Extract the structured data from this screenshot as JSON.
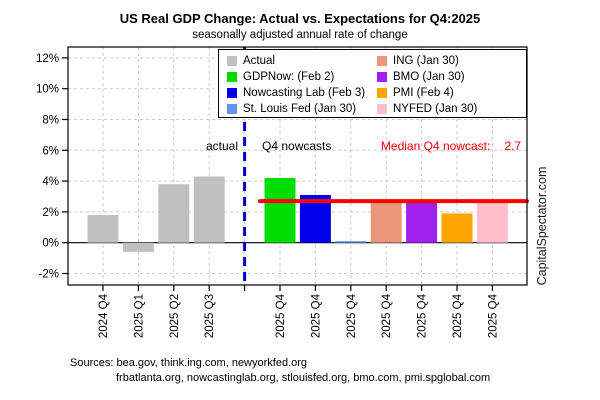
{
  "title": "US Real GDP Change: Actual vs. Expectations for Q4:2025",
  "subtitle": "seasonally adjusted annual rate of change",
  "annotations": {
    "actual_label": "actual",
    "nowcasts_label": "Q4 nowcasts",
    "median_label": "Median Q4 nowcast:",
    "median_value": "2.7"
  },
  "watermark": "CapitalSpectator.com",
  "sources_line1": "Sources: bea.gov, think.ing.com, newyorkfed.org",
  "sources_line2": "frbatlanta.org, nowcastinglab.org, stlouisfed.org, bmo.com, pmi.spglobal.com",
  "legend": {
    "items": [
      {
        "label": "Actual",
        "color": "#C0C0C0"
      },
      {
        "label": "GDPNow: (Feb 2)",
        "color": "#00DD00"
      },
      {
        "label": "Nowcasting Lab (Feb 3)",
        "color": "#0000EE"
      },
      {
        "label": "St. Louis Fed (Jan 30)",
        "color": "#6495ED"
      },
      {
        "label": "ING (Jan 30)",
        "color": "#E9967A"
      },
      {
        "label": "BMO (Jan 30)",
        "color": "#A020F0"
      },
      {
        "label": "PMI (Feb 4)",
        "color": "#FFA500"
      },
      {
        "label": "NYFED (Jan 30)",
        "color": "#FFC0CB"
      }
    ]
  },
  "chart_data": {
    "type": "bar",
    "title": "US Real GDP Change: Actual vs. Expectations for Q4:2025",
    "subtitle": "seasonally adjusted annual rate of change",
    "xlabel": "",
    "ylabel": "",
    "ylim": [
      -2.7,
      12.7
    ],
    "grid": true,
    "legend_position": "top-inside",
    "y_ticks": [
      {
        "value": -2,
        "label": "-2%"
      },
      {
        "value": 0,
        "label": "0%"
      },
      {
        "value": 2,
        "label": "2%"
      },
      {
        "value": 4,
        "label": "4%"
      },
      {
        "value": 6,
        "label": "6%"
      },
      {
        "value": 8,
        "label": "8%"
      },
      {
        "value": 10,
        "label": "10%"
      },
      {
        "value": 12,
        "label": "12%"
      }
    ],
    "slots": 12,
    "divider_slot": 4,
    "divider_color": "#0000CD",
    "grid_color": "#C9C9C9",
    "bars": [
      {
        "slot": 0,
        "x_label": "2024 Q4",
        "series": "Actual",
        "value": 1.8,
        "color": "#C0C0C0"
      },
      {
        "slot": 1,
        "x_label": "2025 Q1",
        "series": "Actual",
        "value": -0.6,
        "color": "#C0C0C0"
      },
      {
        "slot": 2,
        "x_label": "2025 Q2",
        "series": "Actual",
        "value": 3.8,
        "color": "#C0C0C0"
      },
      {
        "slot": 3,
        "x_label": "2025 Q3",
        "series": "Actual",
        "value": 4.3,
        "color": "#C0C0C0"
      },
      {
        "slot": 5,
        "x_label": "2025 Q4",
        "series": "GDPNow: (Feb 2)",
        "value": 4.2,
        "color": "#00DD00"
      },
      {
        "slot": 6,
        "x_label": "2025 Q4",
        "series": "Nowcasting Lab (Feb 3)",
        "value": 3.1,
        "color": "#0000EE"
      },
      {
        "slot": 7,
        "x_label": "2025 Q4",
        "series": "St. Louis Fed (Jan 30)",
        "value": 0.1,
        "color": "#6495ED"
      },
      {
        "slot": 8,
        "x_label": "2025 Q4",
        "series": "ING (Jan 30)",
        "value": 2.7,
        "color": "#E9967A"
      },
      {
        "slot": 9,
        "x_label": "2025 Q4",
        "series": "BMO (Jan 30)",
        "value": 2.7,
        "color": "#A020F0"
      },
      {
        "slot": 10,
        "x_label": "2025 Q4",
        "series": "PMI (Feb 4)",
        "value": 1.9,
        "color": "#FFA500"
      },
      {
        "slot": 11,
        "x_label": "2025 Q4",
        "series": "NYFED (Jan 30)",
        "value": 2.6,
        "color": "#FFC0CB"
      }
    ],
    "median_line": {
      "value": 2.7,
      "color": "#FF0000"
    }
  }
}
